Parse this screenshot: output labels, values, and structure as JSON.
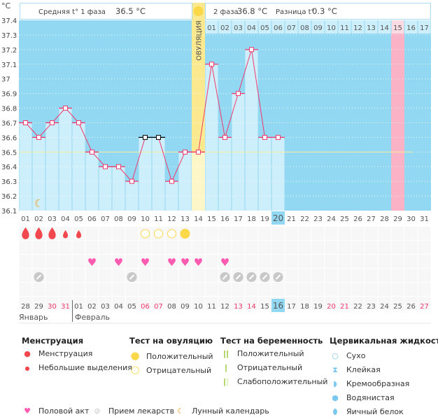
{
  "header": {
    "unit": "°C",
    "phase1": "Средняя t° 1 фаза",
    "phase1_value": "36.5 °C",
    "phase2": "2 фаза",
    "phase2_value": "36.8 °C",
    "diff": "Разница t°",
    "diff_value": "0.3 °C",
    "ovulation_label": "ОВУЛЯЦИЯ"
  },
  "colors": {
    "bg_high": "#92d8f2",
    "bar": "#cdeefb",
    "line": "#f0386b",
    "ovulation": "#fbe98f",
    "expected_period": "#f9b2c6",
    "avg_line": "#f6ee9a"
  },
  "chart_data": {
    "type": "line",
    "title": "",
    "ylabel": "°C",
    "ylim": [
      36.1,
      37.4
    ],
    "yticks": [
      "37.4",
      "37.3",
      "37.2",
      "37.1",
      "37",
      "36.9",
      "36.8",
      "36.7",
      "36.6",
      "36.5",
      "36.4",
      "36.3",
      "36.2",
      "36.1"
    ],
    "cycle_days": [
      "01",
      "02",
      "03",
      "04",
      "05",
      "06",
      "07",
      "08",
      "09",
      "10",
      "11",
      "12",
      "13",
      "14",
      "15",
      "16",
      "17",
      "18",
      "19",
      "20",
      "21",
      "22",
      "23",
      "24",
      "25",
      "26",
      "27",
      "28",
      "29",
      "30",
      "31"
    ],
    "temperatures": [
      36.7,
      36.6,
      36.7,
      36.8,
      36.7,
      36.5,
      36.4,
      36.4,
      36.3,
      36.6,
      36.6,
      36.3,
      36.5,
      36.5,
      37.1,
      36.6,
      36.9,
      37.2,
      36.6,
      36.6
    ],
    "excluded_days": [
      10,
      11
    ],
    "ovulation_day": 14,
    "expected_period_day": 29,
    "current_day": 20,
    "phase1_average": 36.5,
    "phase2_labels": [
      "01",
      "02",
      "03",
      "04",
      "05",
      "06",
      "07",
      "08",
      "09",
      "10",
      "11",
      "12",
      "13",
      "14",
      "15",
      "16",
      "17"
    ],
    "grid": true
  },
  "events": {
    "menstruation_heavy": [
      1,
      2,
      3
    ],
    "menstruation_light": [
      4,
      5
    ],
    "ovulation_test_negative": [
      10,
      11,
      12
    ],
    "ovulation_test_positive": [
      13
    ],
    "intercourse": [
      6,
      8,
      10,
      12,
      13,
      14,
      16
    ],
    "medication": [
      2,
      9,
      16,
      17,
      18,
      19,
      20
    ],
    "moon": [
      2
    ]
  },
  "calendar": {
    "dates": [
      "28",
      "29",
      "30",
      "31",
      "01",
      "02",
      "03",
      "04",
      "05",
      "06",
      "07",
      "08",
      "09",
      "10",
      "11",
      "12",
      "13",
      "14",
      "15",
      "16",
      "17",
      "18",
      "19",
      "20",
      "21",
      "22",
      "23",
      "24",
      "25",
      "26",
      "27"
    ],
    "weekend": [
      "30",
      "31",
      "06",
      "07",
      "13",
      "14",
      "20",
      "21",
      "27"
    ],
    "month1": "Январь",
    "month2": "Февраль"
  },
  "legend": {
    "menstr_title": "Менструация",
    "menstr": "Менструация",
    "spotting": "Небольшие выделения",
    "ov_title": "Тест на овуляцию",
    "ov_pos": "Положительный",
    "ov_neg": "Отрицательный",
    "preg_title": "Тест на беременность",
    "preg_pos": "Положительный",
    "preg_neg": "Отрицательный",
    "preg_weak": "Слабоположительный",
    "cerv_title": "Цервикальная жидкость",
    "dry": "Сухо",
    "sticky": "Клейкая",
    "creamy": "Кремообразная",
    "watery": "Водянистая",
    "eggwhite": "Яичный белок",
    "sex": "Половой акт",
    "meds": "Прием лекарств",
    "moon": "Лунный календарь"
  }
}
